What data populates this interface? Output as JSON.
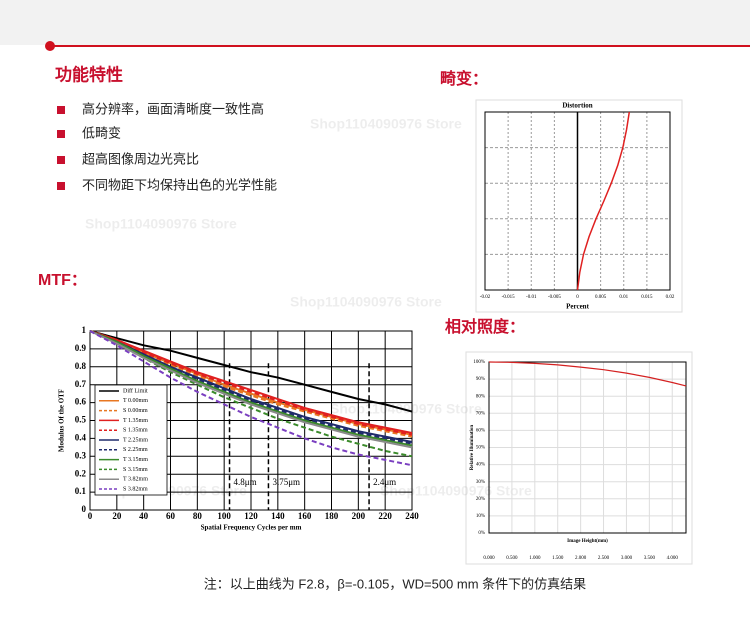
{
  "features": {
    "title": "功能特性",
    "items": [
      "高分辨率，画面清晰度一致性高",
      "低畸变",
      "超高图像周边光亮比",
      "不同物距下均保持出色的光学性能"
    ]
  },
  "headings": {
    "distortion": "畸变：",
    "mtf": "MTF：",
    "illumination": "相对照度："
  },
  "watermark": "Shop1104090976 Store",
  "note": "注：以上曲线为 F2.8，β=-0.105，WD=500 mm 条件下的仿真结果",
  "chart_data": [
    {
      "type": "line",
      "title": "Distortion",
      "xlabel": "Percent",
      "xlim": [
        -0.02,
        0.02
      ],
      "ylim": [
        0,
        1
      ],
      "xticks": [
        -0.02,
        -0.015,
        -0.01,
        -0.005,
        0,
        0.005,
        0.01,
        0.015,
        0.02
      ],
      "grid": true,
      "y": [
        0,
        0.1,
        0.2,
        0.3,
        0.4,
        0.5,
        0.6,
        0.7,
        0.8,
        0.9,
        1
      ],
      "series": [
        {
          "color": "#e02020",
          "values": [
            0,
            0.0005,
            0.0013,
            0.0025,
            0.004,
            0.0057,
            0.0073,
            0.0087,
            0.0098,
            0.0106,
            0.0112
          ]
        }
      ]
    },
    {
      "type": "line",
      "xlabel": "Spatial Frequency Cycles per mm",
      "ylabel": "Modulus Of the OTF",
      "xlim": [
        0,
        240
      ],
      "ylim": [
        0,
        1
      ],
      "xticks": [
        0,
        20,
        40,
        60,
        80,
        100,
        120,
        140,
        160,
        180,
        200,
        220,
        240
      ],
      "yticks": [
        0,
        0.1,
        0.2,
        0.3,
        0.4,
        0.5,
        0.6,
        0.7,
        0.8,
        0.9,
        1
      ],
      "grid": true,
      "legend": "left",
      "x": [
        0,
        20,
        40,
        60,
        80,
        100,
        120,
        140,
        160,
        180,
        200,
        220,
        240
      ],
      "series": [
        {
          "name": "Diff Limit",
          "color": "#000000",
          "dash": false,
          "values": [
            1,
            0.96,
            0.92,
            0.89,
            0.85,
            0.81,
            0.77,
            0.74,
            0.7,
            0.66,
            0.62,
            0.59,
            0.55
          ]
        },
        {
          "name": "T 0.00mm",
          "color": "#e87722",
          "dash": false,
          "values": [
            1,
            0.95,
            0.88,
            0.82,
            0.76,
            0.7,
            0.65,
            0.6,
            0.56,
            0.52,
            0.48,
            0.45,
            0.42
          ]
        },
        {
          "name": "S 0.00mm",
          "color": "#e87722",
          "dash": true,
          "values": [
            1,
            0.94,
            0.87,
            0.81,
            0.75,
            0.69,
            0.64,
            0.59,
            0.55,
            0.51,
            0.47,
            0.44,
            0.41
          ]
        },
        {
          "name": "T 1.35mm",
          "color": "#e02020",
          "dash": false,
          "values": [
            1,
            0.95,
            0.89,
            0.83,
            0.77,
            0.72,
            0.67,
            0.62,
            0.57,
            0.53,
            0.49,
            0.46,
            0.43
          ]
        },
        {
          "name": "S 1.35mm",
          "color": "#e02020",
          "dash": true,
          "values": [
            1,
            0.94,
            0.88,
            0.82,
            0.76,
            0.71,
            0.66,
            0.61,
            0.56,
            0.52,
            0.48,
            0.45,
            0.42
          ]
        },
        {
          "name": "T 2.25mm",
          "color": "#1f2a6b",
          "dash": false,
          "values": [
            1,
            0.94,
            0.87,
            0.8,
            0.74,
            0.68,
            0.62,
            0.57,
            0.52,
            0.48,
            0.44,
            0.41,
            0.38
          ]
        },
        {
          "name": "S 2.25mm",
          "color": "#1f2a6b",
          "dash": true,
          "values": [
            1,
            0.93,
            0.86,
            0.79,
            0.73,
            0.67,
            0.61,
            0.56,
            0.51,
            0.47,
            0.43,
            0.4,
            0.37
          ]
        },
        {
          "name": "T 3.15mm",
          "color": "#3a8a2a",
          "dash": false,
          "values": [
            1,
            0.94,
            0.86,
            0.79,
            0.72,
            0.66,
            0.6,
            0.55,
            0.5,
            0.46,
            0.42,
            0.39,
            0.36
          ]
        },
        {
          "name": "S 3.15mm",
          "color": "#3a8a2a",
          "dash": true,
          "values": [
            1,
            0.93,
            0.85,
            0.77,
            0.7,
            0.63,
            0.57,
            0.51,
            0.46,
            0.41,
            0.37,
            0.33,
            0.3
          ]
        },
        {
          "name": "T 3.82mm",
          "color": "#8a8a8a",
          "dash": false,
          "values": [
            1,
            0.93,
            0.85,
            0.78,
            0.71,
            0.65,
            0.59,
            0.54,
            0.49,
            0.45,
            0.41,
            0.38,
            0.35
          ]
        },
        {
          "name": "S 3.82mm",
          "color": "#7a3fc0",
          "dash": true,
          "values": [
            1,
            0.92,
            0.83,
            0.74,
            0.66,
            0.59,
            0.52,
            0.46,
            0.4,
            0.35,
            0.31,
            0.28,
            0.25
          ]
        }
      ],
      "annotations": [
        {
          "text": "4.8μm",
          "x": 104
        },
        {
          "text": "3.75μm",
          "x": 133
        },
        {
          "text": "2.4μm",
          "x": 208
        }
      ]
    },
    {
      "type": "line",
      "xlabel": "Image Height(mm)",
      "ylabel": "Relative Illumination",
      "xlim": [
        0,
        4.3
      ],
      "ylim": [
        0,
        100
      ],
      "grid": true,
      "xticks": [
        {
          "value": 0,
          "label": "0.000"
        },
        {
          "value": 0.5,
          "label": "0.500"
        },
        {
          "value": 1,
          "label": "1.000"
        },
        {
          "value": 1.5,
          "label": "1.500"
        },
        {
          "value": 2,
          "label": "2.000"
        },
        {
          "value": 2.5,
          "label": "2.500"
        },
        {
          "value": 3,
          "label": "3.000"
        },
        {
          "value": 3.5,
          "label": "3.500"
        },
        {
          "value": 4,
          "label": "4.000"
        }
      ],
      "yticks": [
        {
          "value": 0,
          "label": "0%"
        },
        {
          "value": 10,
          "label": "10%"
        },
        {
          "value": 20,
          "label": "20%"
        },
        {
          "value": 30,
          "label": "30%"
        },
        {
          "value": 40,
          "label": "40%"
        },
        {
          "value": 50,
          "label": "50%"
        },
        {
          "value": 60,
          "label": "60%"
        },
        {
          "value": 70,
          "label": "70%"
        },
        {
          "value": 80,
          "label": "80%"
        },
        {
          "value": 90,
          "label": "90%"
        },
        {
          "value": 100,
          "label": "100%"
        }
      ],
      "x": [
        0,
        0.5,
        1,
        1.5,
        2,
        2.5,
        3,
        3.5,
        4,
        4.3
      ],
      "series": [
        {
          "color": "#d42020",
          "values": [
            100,
            99.8,
            99.2,
            98.3,
            97,
            95.5,
            93.5,
            91,
            88,
            86
          ]
        }
      ]
    }
  ]
}
